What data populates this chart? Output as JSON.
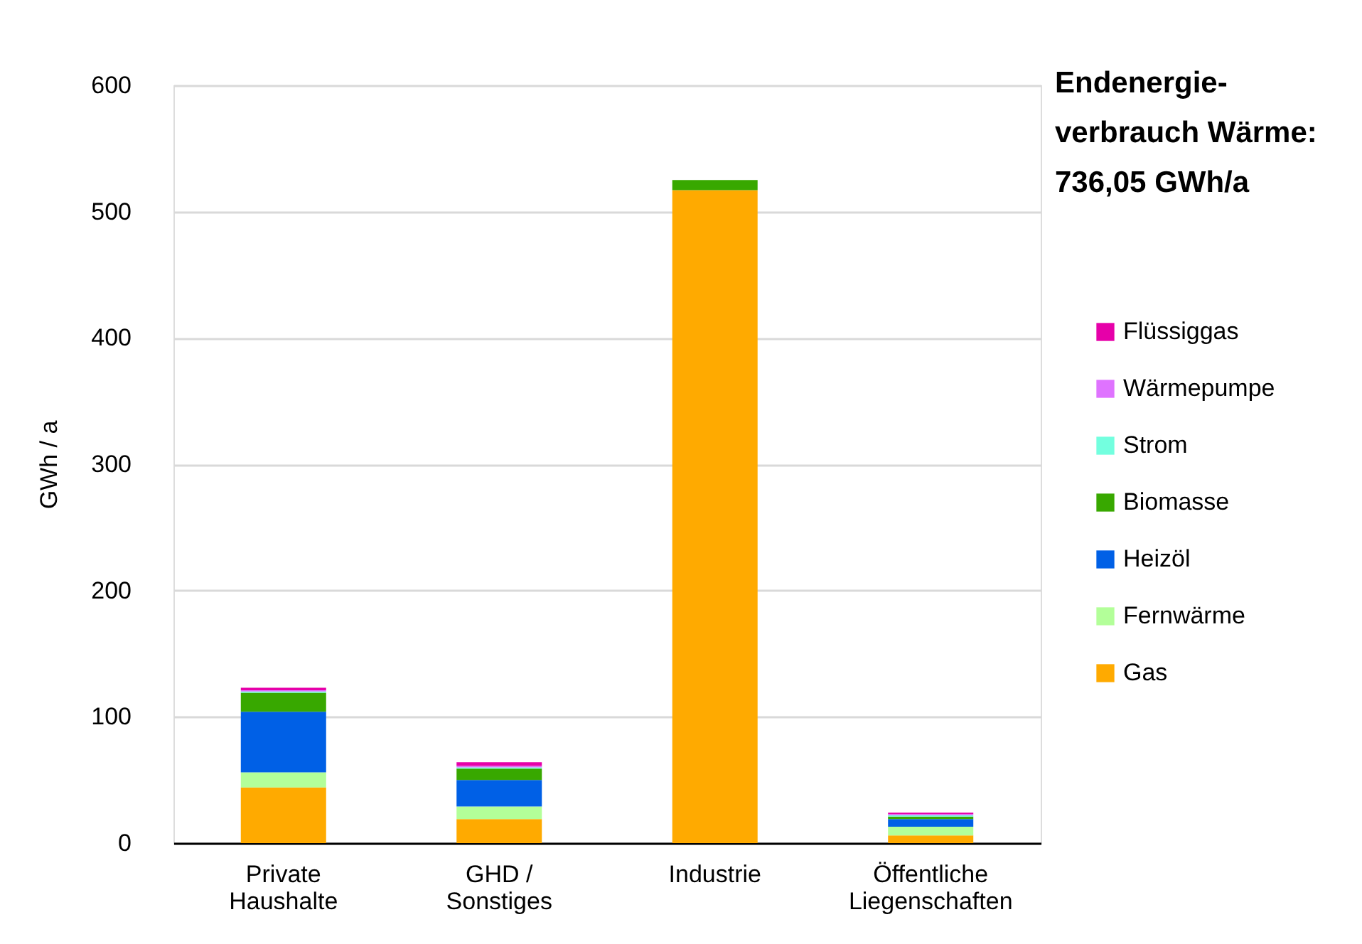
{
  "chart_data": {
    "type": "bar",
    "stacked": true,
    "title": "Endenergie-verbrauch Wärme: 736,05 GWh/a",
    "ylabel": "GWh / a",
    "categories": [
      "Private Haushalte",
      "GHD / Sonstiges",
      "Industrie",
      "Öffentliche Liegenschaften"
    ],
    "series": [
      {
        "name": "Gas",
        "color": "#ffaa00",
        "values": [
          44,
          19,
          517,
          6
        ]
      },
      {
        "name": "Fernwärme",
        "color": "#b3ff99",
        "values": [
          12,
          10,
          0,
          7
        ]
      },
      {
        "name": "Heizöl",
        "color": "#0060e6",
        "values": [
          48,
          21,
          0,
          6
        ]
      },
      {
        "name": "Biomasse",
        "color": "#38a800",
        "values": [
          15,
          9,
          8,
          2
        ]
      },
      {
        "name": "Strom",
        "color": "#73ffdf",
        "values": [
          1,
          1,
          0,
          1
        ]
      },
      {
        "name": "Wärmepumpe",
        "color": "#df73ff",
        "values": [
          1,
          1,
          0,
          1
        ]
      },
      {
        "name": "Flüssiggas",
        "color": "#e600a9",
        "values": [
          2,
          3,
          0,
          1
        ]
      }
    ],
    "ylim": [
      0,
      600
    ],
    "yticks": [
      0,
      100,
      200,
      300,
      400,
      500,
      600
    ],
    "grid": "y",
    "legend": "right"
  }
}
